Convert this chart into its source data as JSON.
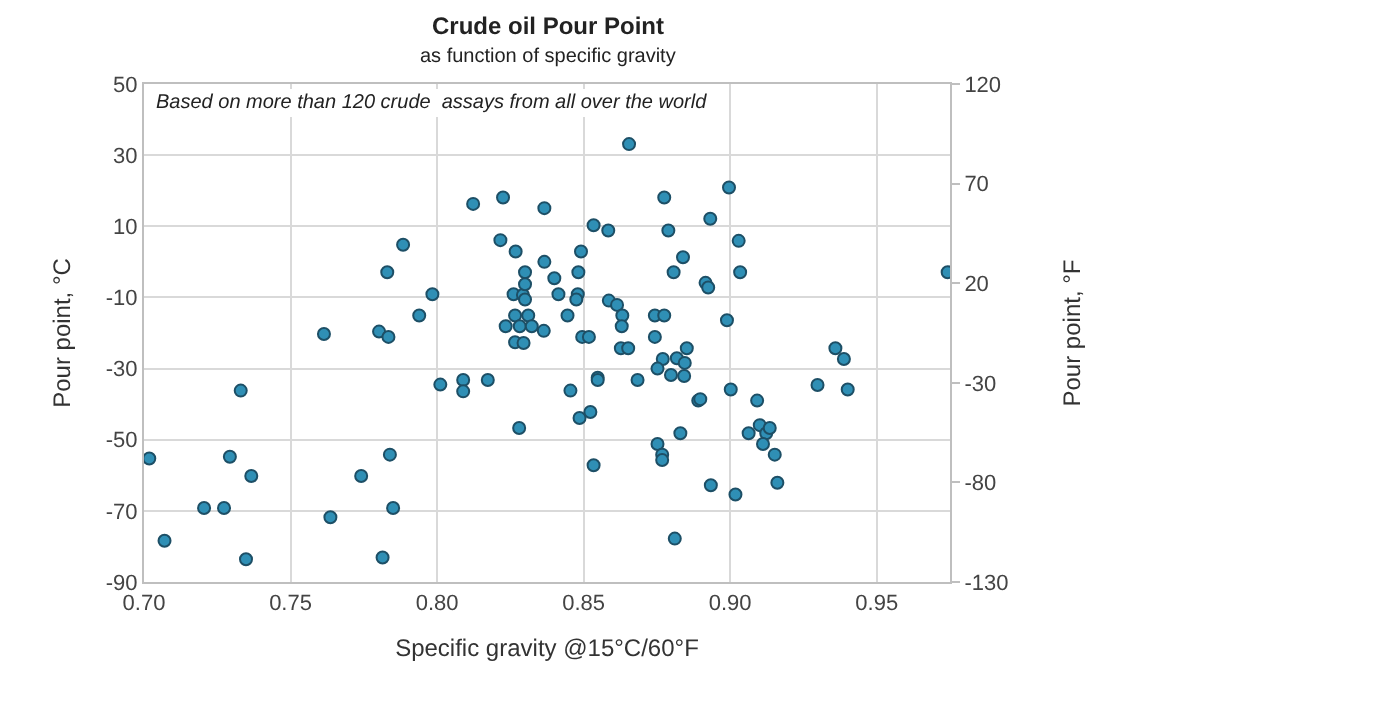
{
  "chart_data": {
    "type": "scatter",
    "title": "Crude oil Pour Point",
    "subtitle": "as function of specific gravity",
    "xlabel": "Specific gravity @15°C/60°F",
    "ylabel": "Pour point, °C",
    "y2label": "Pour point, °F",
    "annotations": [
      "Based on more than 120 crude  assays from all over the world"
    ],
    "xlim": [
      0.7,
      0.975
    ],
    "xticks": [
      {
        "value": 0.7,
        "label": "0.70"
      },
      {
        "value": 0.75,
        "label": "0.75"
      },
      {
        "value": 0.8,
        "label": "0.80"
      },
      {
        "value": 0.85,
        "label": "0.85"
      },
      {
        "value": 0.9,
        "label": "0.90"
      },
      {
        "value": 0.95,
        "label": "0.95"
      }
    ],
    "ylim": [
      -90,
      50
    ],
    "yticks": [
      -90,
      -70,
      -50,
      -30,
      -10,
      10,
      30,
      50
    ],
    "y2lim": [
      -130,
      120
    ],
    "y2ticks": [
      -130,
      -80,
      -30,
      20,
      70,
      120
    ],
    "grid": true,
    "marker": "circle",
    "series": [
      {
        "color": "#2f8fb5",
        "x": [
          0.8655,
          0.8123,
          0.8225,
          0.8366,
          0.8534,
          0.8584,
          0.8216,
          0.7884,
          0.8268,
          0.8491,
          0.783,
          0.83,
          0.8366,
          0.8482,
          0.84,
          0.7984,
          0.8261,
          0.8293,
          0.83,
          0.83,
          0.8414,
          0.848,
          0.8475,
          0.8586,
          0.8614,
          0.8632,
          0.863,
          0.8627,
          0.8652,
          0.7939,
          0.8266,
          0.8311,
          0.8234,
          0.8282,
          0.8323,
          0.8364,
          0.8445,
          0.8266,
          0.8295,
          0.8495,
          0.8518,
          0.7614,
          0.7802,
          0.7834,
          0.8743,
          0.8775,
          0.8743,
          0.877,
          0.8818,
          0.8852,
          0.8845,
          0.8798,
          0.8843,
          0.8839,
          0.8807,
          0.8789,
          0.8775,
          0.8932,
          0.8916,
          0.8925,
          0.8996,
          0.9029,
          0.9034,
          0.9742,
          0.8989,
          0.9359,
          0.9388,
          0.9298,
          0.9401,
          0.9002,
          0.733,
          0.7018,
          0.7293,
          0.7366,
          0.707,
          0.7205,
          0.7273,
          0.7348,
          0.7636,
          0.7741,
          0.7839,
          0.785,
          0.7814,
          0.8011,
          0.8089,
          0.8089,
          0.8173,
          0.828,
          0.8455,
          0.8486,
          0.8523,
          0.8548,
          0.8548,
          0.8534,
          0.8684,
          0.8752,
          0.8752,
          0.8768,
          0.8768,
          0.883,
          0.8811,
          0.8891,
          0.8898,
          0.8934,
          0.9092,
          0.9063,
          0.9101,
          0.9123,
          0.9135,
          0.9112,
          0.9152,
          0.9161,
          0.9018
        ],
        "values": [
          33.1,
          16.3,
          18.1,
          15.1,
          10.3,
          8.8,
          6.1,
          4.8,
          2.9,
          2.9,
          -2.9,
          -2.9,
          0,
          -2.9,
          -4.6,
          -9.1,
          -9.1,
          -9.3,
          -6.3,
          -10.6,
          -9.1,
          -9.1,
          -10.6,
          -10.9,
          -12.1,
          -15.1,
          -18.1,
          -24.3,
          -24.3,
          -15.1,
          -15.1,
          -15.1,
          -18.1,
          -18.1,
          -18.1,
          -19.4,
          -15.1,
          -22.6,
          -22.8,
          -21.1,
          -21.1,
          -20.3,
          -19.6,
          -21.1,
          -15.1,
          -15.1,
          -21.1,
          -27.3,
          -27.1,
          -24.3,
          -28.4,
          -31.8,
          -32.1,
          1.3,
          -2.9,
          8.8,
          18.1,
          12.1,
          -5.9,
          -7.2,
          20.9,
          5.9,
          -2.9,
          -2.9,
          -16.4,
          -24.3,
          -27.3,
          -34.6,
          -35.9,
          -35.9,
          -36.2,
          -55.3,
          -54.8,
          -60.2,
          -78.4,
          -69.2,
          -69.2,
          -83.6,
          -71.8,
          -60.2,
          -54.2,
          -69.2,
          -83.1,
          -34.5,
          -33.2,
          -36.4,
          -33.2,
          -46.7,
          -36.2,
          -43.9,
          -42.2,
          -32.6,
          -33.2,
          -57.2,
          -33.2,
          -30,
          -51.2,
          -54.2,
          -55.7,
          -48.2,
          -77.8,
          -39,
          -38.6,
          -62.8,
          -39,
          -48.2,
          -45.9,
          -48.2,
          -46.7,
          -51.2,
          -54.2,
          -62.1,
          -65.4
        ]
      }
    ]
  }
}
